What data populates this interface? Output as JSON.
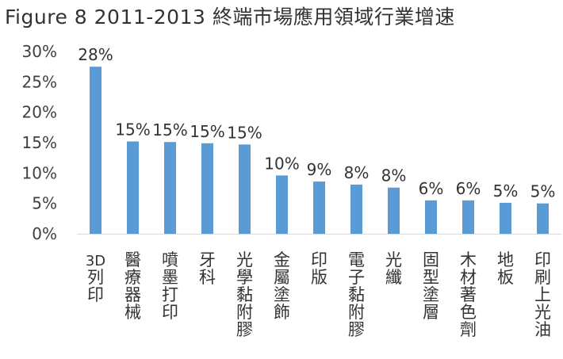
{
  "title": "Figure 8 2011-2013 終端市場應用領域行業增速",
  "chart_data": {
    "type": "bar",
    "title": "Figure 8 2011-2013 終端市場應用領域行業增速",
    "categories": [
      "3D列印",
      "醫療器械",
      "噴墨打印",
      "牙科",
      "光學黏附膠",
      "金屬塗飾",
      "印版",
      "電子黏附膠",
      "光纖",
      "固型塗層",
      "木材著色劑",
      "地板",
      "印刷上光油"
    ],
    "values": [
      27.5,
      15.2,
      15.1,
      14.9,
      14.7,
      9.6,
      8.6,
      8.1,
      7.6,
      5.5,
      5.5,
      5.1,
      5.0
    ],
    "data_labels": [
      "28%",
      "15%",
      "15%",
      "15%",
      "15%",
      "10%",
      "9%",
      "8%",
      "8%",
      "6%",
      "6%",
      "5%",
      "5%"
    ],
    "yticks": [
      "0%",
      "5%",
      "10%",
      "15%",
      "20%",
      "25%",
      "30%"
    ],
    "ylim": [
      0,
      30
    ],
    "xlabel": "",
    "ylabel": "",
    "grid": false,
    "legend": "none",
    "bar_color": "#5B9BD5",
    "axis_color": "#D9D9D9"
  }
}
